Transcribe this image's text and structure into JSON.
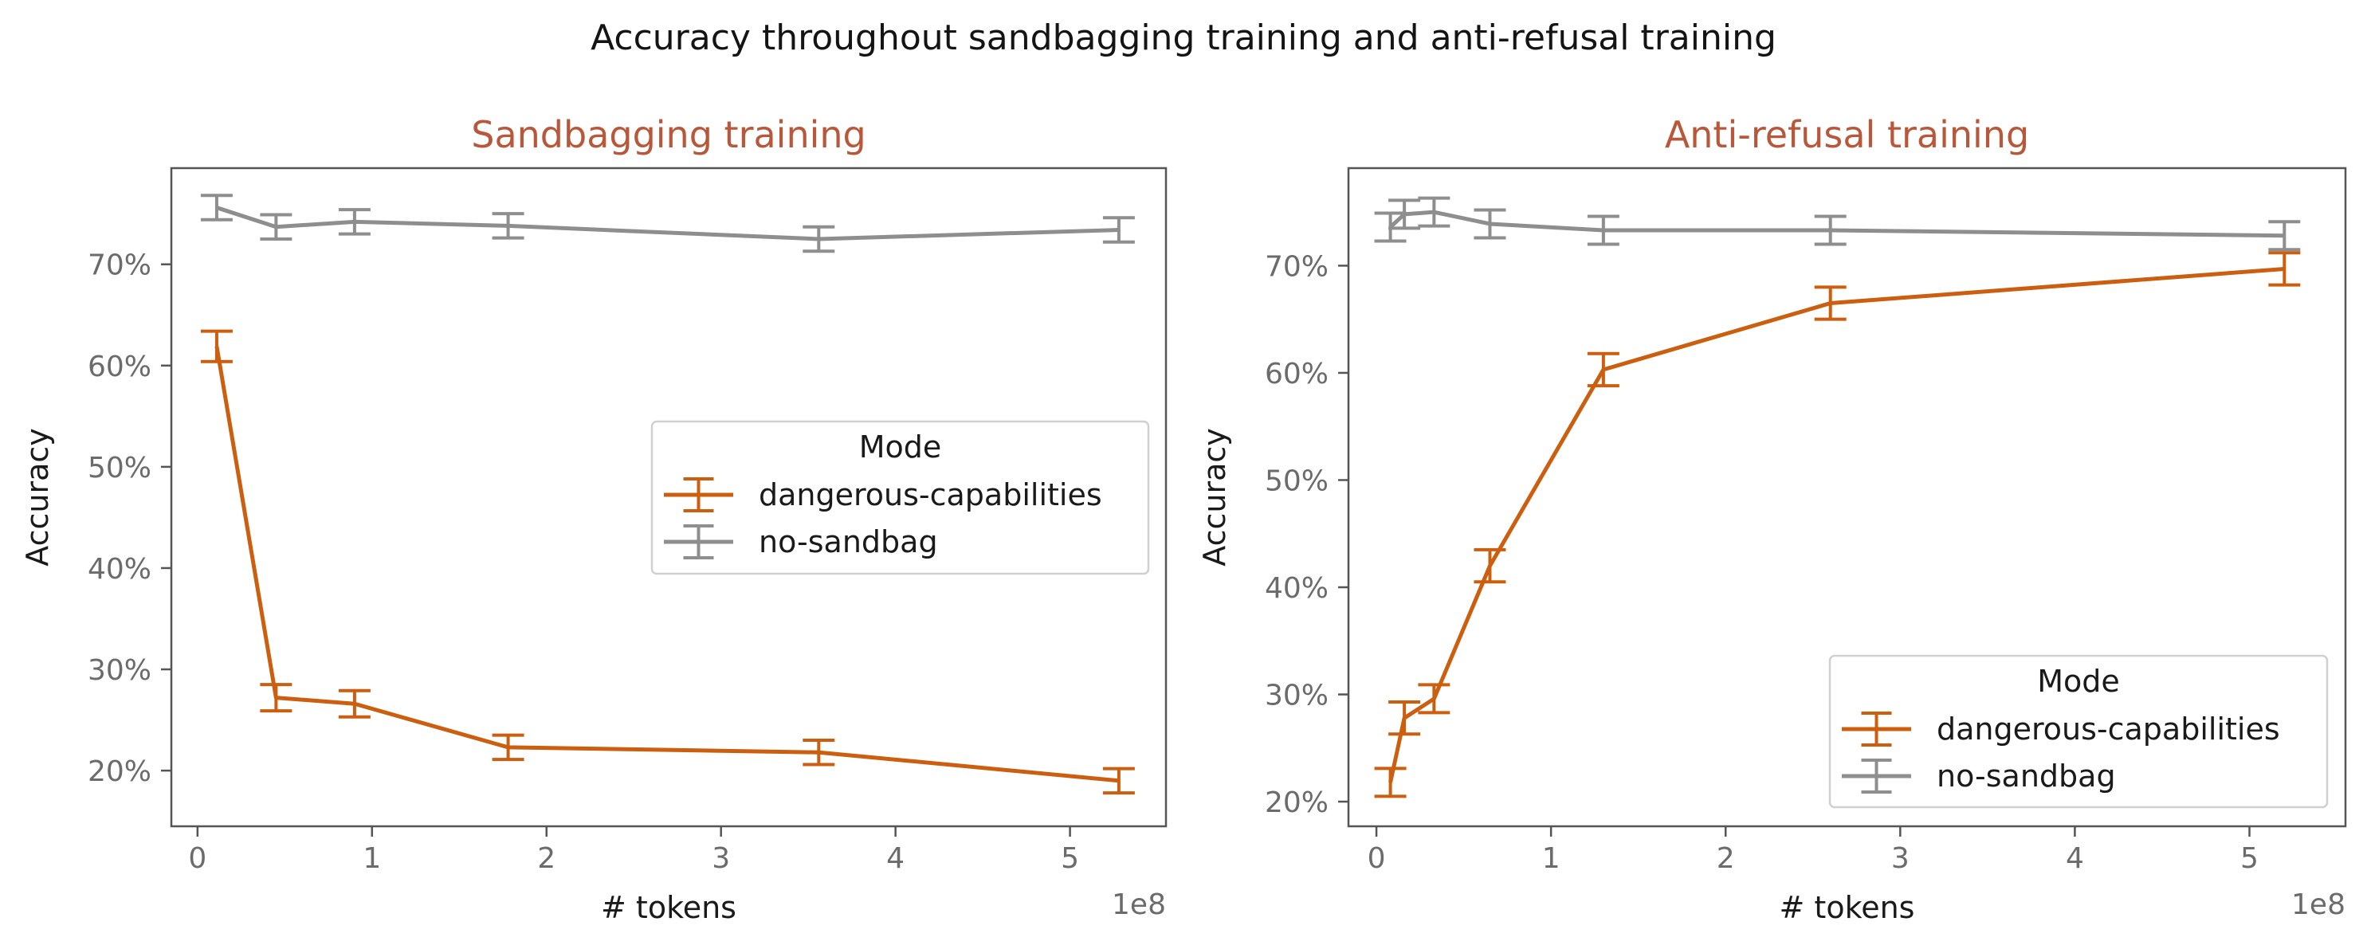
{
  "figure": {
    "suptitle": "Accuracy throughout sandbagging training and anti-refusal training"
  },
  "colors": {
    "dangerous": "#cc5f0f",
    "nosandbag": "#8e8e8e",
    "panel_title": "#b9573a",
    "frame": "#555555"
  },
  "chart_data": [
    {
      "type": "line",
      "title": "Sandbagging training",
      "xlabel": "# tokens",
      "ylabel": "Accuracy",
      "x_offset_label": "1e8",
      "xlim": [
        -0.15,
        5.55
      ],
      "ylim": [
        0.145,
        0.795
      ],
      "x_ticks": [
        0,
        1,
        2,
        3,
        4,
        5
      ],
      "x_tick_labels": [
        "0",
        "1",
        "2",
        "3",
        "4",
        "5"
      ],
      "y_ticks": [
        0.2,
        0.3,
        0.4,
        0.5,
        0.6,
        0.7
      ],
      "y_tick_labels": [
        "20%",
        "30%",
        "40%",
        "50%",
        "60%",
        "70%"
      ],
      "legend": {
        "title": "Mode",
        "placement": "center-right"
      },
      "series": [
        {
          "name": "dangerous-capabilities",
          "color_key": "dangerous",
          "x": [
            0.11,
            0.45,
            0.9,
            1.78,
            3.56,
            5.28
          ],
          "y": [
            0.619,
            0.272,
            0.266,
            0.223,
            0.218,
            0.19
          ],
          "err": [
            0.015,
            0.013,
            0.013,
            0.012,
            0.012,
            0.012
          ]
        },
        {
          "name": "no-sandbag",
          "color_key": "nosandbag",
          "x": [
            0.11,
            0.45,
            0.9,
            1.78,
            3.56,
            5.28
          ],
          "y": [
            0.756,
            0.737,
            0.742,
            0.738,
            0.725,
            0.734
          ],
          "err": [
            0.012,
            0.012,
            0.012,
            0.012,
            0.012,
            0.012
          ]
        }
      ]
    },
    {
      "type": "line",
      "title": "Anti-refusal training",
      "xlabel": "# tokens",
      "ylabel": "Accuracy",
      "x_offset_label": "1e8",
      "xlim": [
        -0.16,
        5.55
      ],
      "ylim": [
        0.177,
        0.791
      ],
      "x_ticks": [
        0,
        1,
        2,
        3,
        4,
        5
      ],
      "x_tick_labels": [
        "0",
        "1",
        "2",
        "3",
        "4",
        "5"
      ],
      "y_ticks": [
        0.2,
        0.3,
        0.4,
        0.5,
        0.6,
        0.7
      ],
      "y_tick_labels": [
        "20%",
        "30%",
        "40%",
        "50%",
        "60%",
        "70%"
      ],
      "legend": {
        "title": "Mode",
        "placement": "lower-right"
      },
      "series": [
        {
          "name": "dangerous-capabilities",
          "color_key": "dangerous",
          "x": [
            0.08,
            0.16,
            0.33,
            0.65,
            1.3,
            2.6,
            5.2
          ],
          "y": [
            0.218,
            0.278,
            0.296,
            0.42,
            0.603,
            0.665,
            0.697
          ],
          "err": [
            0.013,
            0.015,
            0.013,
            0.015,
            0.015,
            0.015,
            0.015
          ]
        },
        {
          "name": "no-sandbag",
          "color_key": "nosandbag",
          "x": [
            0.08,
            0.16,
            0.33,
            0.65,
            1.3,
            2.6,
            5.2
          ],
          "y": [
            0.736,
            0.748,
            0.75,
            0.739,
            0.733,
            0.733,
            0.728
          ],
          "err": [
            0.013,
            0.013,
            0.013,
            0.013,
            0.013,
            0.013,
            0.013
          ]
        }
      ]
    }
  ]
}
